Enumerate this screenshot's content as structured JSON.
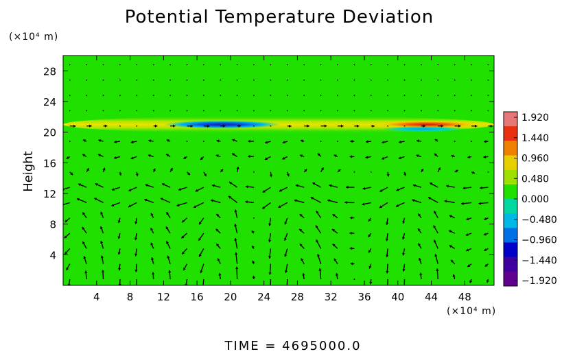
{
  "chart_data": {
    "type": "heatmap",
    "title": "Potential Temperature Deviation",
    "ylabel": "Height",
    "x_unit": "(×10⁴ m)",
    "y_unit": "(×10⁴ m)",
    "x_ticks": [
      4,
      8,
      12,
      16,
      20,
      24,
      28,
      32,
      36,
      40,
      44,
      48
    ],
    "y_ticks": [
      4,
      8,
      12,
      16,
      20,
      24,
      28
    ],
    "xlim": [
      0,
      51.5
    ],
    "ylim": [
      0,
      30
    ],
    "colorbar": {
      "ticks": [
        "1.920",
        "1.440",
        "0.960",
        "0.480",
        "0.000",
        "−0.480",
        "−0.960",
        "−1.440",
        "−1.920"
      ],
      "values": [
        1.92,
        1.44,
        0.96,
        0.48,
        0.0,
        -0.48,
        -0.96,
        -1.44,
        -1.92
      ],
      "range": [
        -1.92,
        1.92
      ],
      "colors": [
        "#e87878",
        "#e83010",
        "#f08000",
        "#e8d000",
        "#a0e000",
        "#20e000",
        "#00d8a0",
        "#00b8e8",
        "#0070e8",
        "#0000c8",
        "#4000a0",
        "#600090"
      ]
    },
    "background_value": 0.0,
    "features": [
      {
        "label": "warm band",
        "x_range": [
          0,
          51.5
        ],
        "y_center": 21.0,
        "value": 0.6
      },
      {
        "label": "cool anomaly",
        "x_range": [
          12,
          26
        ],
        "y_center": 21.0,
        "value": -1.2
      },
      {
        "label": "warm anomaly",
        "x_range": [
          37,
          50
        ],
        "y_center": 21.0,
        "value": 1.3
      },
      {
        "label": "cool anomaly",
        "x_range": [
          38,
          48
        ],
        "y_center": 20.4,
        "value": -0.7
      }
    ],
    "vectors": "velocity field arrows below ~21 km; circulation cells near x = 2, 10, 18, 28, 42"
  },
  "footer": {
    "time": "TIME  =  4695000.0"
  }
}
